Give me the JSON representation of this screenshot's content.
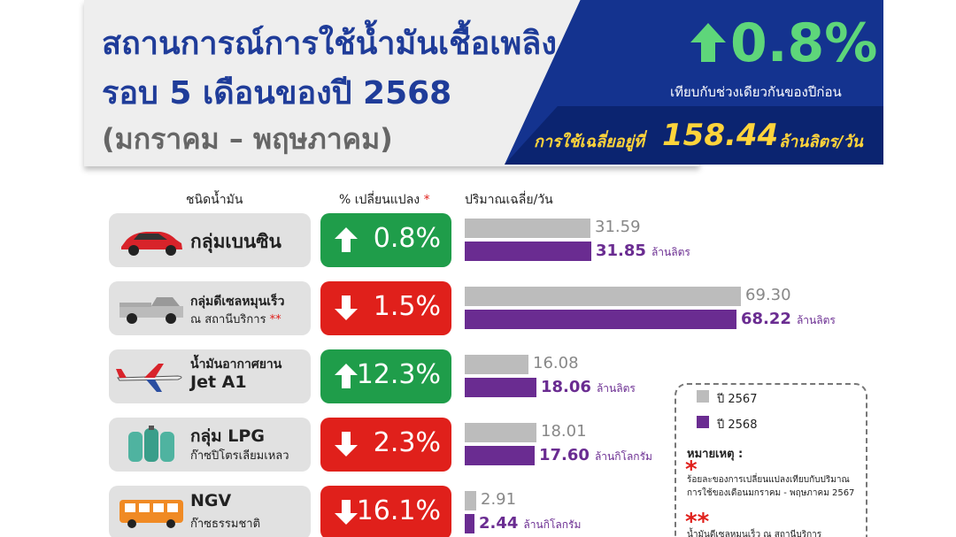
{
  "header": {
    "title_line1": "สถานการณ์การใช้น้ำมันเชื้อเพลิง",
    "title_line2": "รอบ 5 เดือนของปี 2568",
    "subtitle": "(มกราคม – พฤษภาคม)",
    "overall_change": "0.8%",
    "overall_direction": "up",
    "comparison_text": "เทียบกับช่วงเดียวกันของปีก่อน",
    "avg_prefix": "การใช้เฉลี่ยอยู่ที่",
    "avg_value": "158.44",
    "avg_unit": "ล้านลิตร/วัน"
  },
  "columns": {
    "type": "ชนิดน้ำมัน",
    "change": "% เปลี่ยนแปลง",
    "change_star": "*",
    "volume": "ปริมาณเฉลี่ย/วัน"
  },
  "colors": {
    "up": "#1f9d4a",
    "down": "#e0201b",
    "prev_bar": "#bcbcbc",
    "curr_bar": "#6a2c91",
    "title_blue": "#1f3c99"
  },
  "chart_data": {
    "type": "bar",
    "orientation": "horizontal",
    "categories": [
      "กลุ่มเบนซิน",
      "กลุ่มดีเซลหมุนเร็ว ณ สถานีบริการ",
      "น้ำมันอากาศยาน Jet A1",
      "กลุ่ม LPG ก๊าซปิโตรเลียมเหลว",
      "NGV ก๊าซธรรมชาติ"
    ],
    "series": [
      {
        "name": "ปี 2567",
        "values": [
          31.59,
          69.3,
          16.08,
          18.01,
          2.91
        ]
      },
      {
        "name": "ปี 2568",
        "values": [
          31.85,
          68.22,
          18.06,
          17.6,
          2.44
        ]
      }
    ],
    "title": "",
    "xlabel": "",
    "ylabel": "",
    "legend_position": "bottom-right",
    "grid": false
  },
  "rows": [
    {
      "line1": "กลุ่มเบนซิน",
      "line2": "",
      "line1_star": "",
      "change": "0.8%",
      "direction": "up",
      "prev": "31.59",
      "curr": "31.85",
      "unit": "ล้านลิตร",
      "icon": "car-icon"
    },
    {
      "line1": "กลุ่มดีเซลหมุนเร็ว",
      "line2": "ณ สถานีบริการ",
      "line2_star": "**",
      "change": "1.5%",
      "direction": "down",
      "prev": "69.30",
      "curr": "68.22",
      "unit": "ล้านลิตร",
      "icon": "pickup-truck-icon"
    },
    {
      "line1": "น้ำมันอากาศยาน",
      "line2": "Jet A1",
      "change": "12.3%",
      "direction": "up",
      "prev": "16.08",
      "curr": "18.06",
      "unit": "ล้านลิตร",
      "icon": "airplane-icon"
    },
    {
      "line1": "กลุ่ม LPG",
      "line2": "ก๊าซปิโตรเลียมเหลว",
      "change": "2.3%",
      "direction": "down",
      "prev": "18.01",
      "curr": "17.60",
      "unit": "ล้านกิโลกรัม",
      "icon": "gas-cylinder-icon"
    },
    {
      "line1": "NGV",
      "line2": "ก๊าซธรรมชาติ",
      "change": "16.1%",
      "direction": "down",
      "prev": "2.91",
      "curr": "2.44",
      "unit": "ล้านกิโลกรัม",
      "icon": "bus-icon"
    }
  ],
  "legend": {
    "prev_label": "ปี 2567",
    "curr_label": "ปี 2568"
  },
  "notes": {
    "title": "หมายเหตุ :",
    "star1": "*",
    "note1": "ร้อยละของการเปลี่ยนแปลงเทียบกับปริมาณการใช้ของเดือนมกราคม - พฤษภาคม 2567",
    "star2": "**",
    "note2": "น้ำมันดีเซลหมุนเร็ว ณ สถานีบริการ"
  }
}
